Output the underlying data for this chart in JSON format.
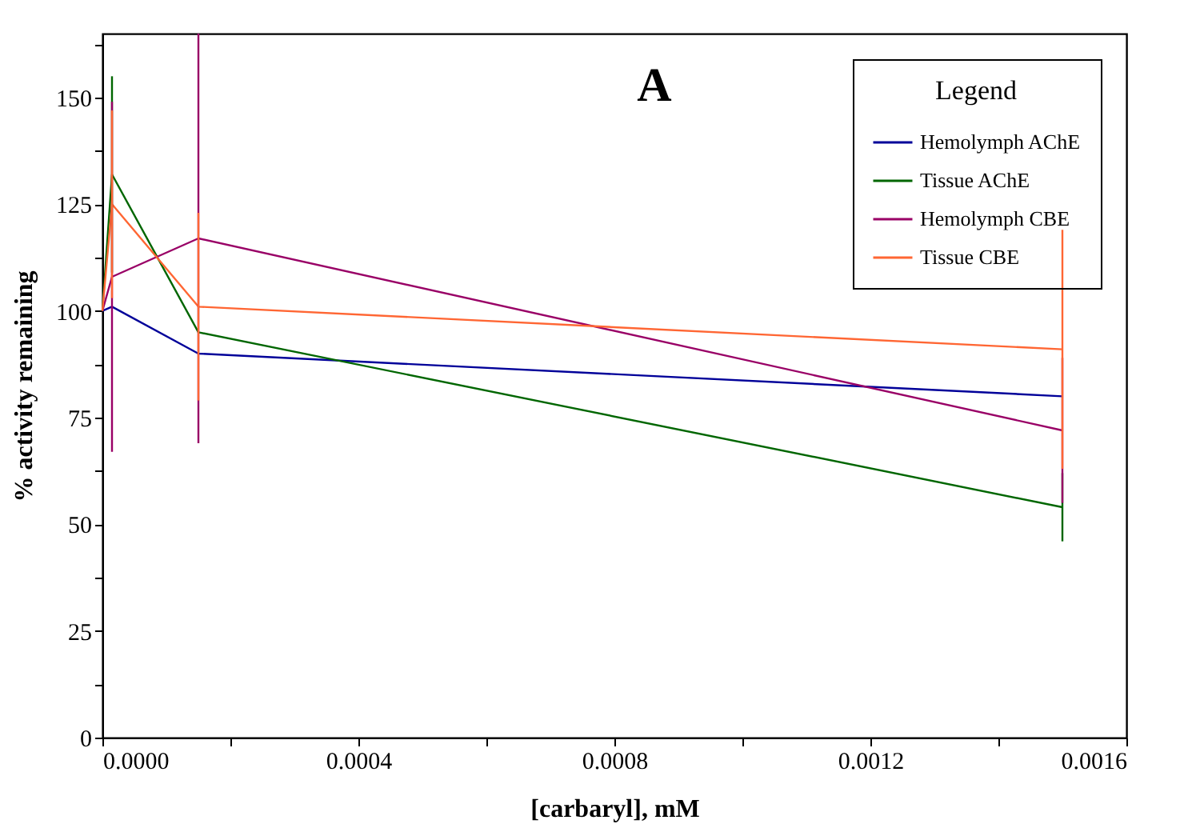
{
  "chart_data": {
    "type": "line",
    "xlabel": "[carbaryl], mM",
    "ylabel": "% activity remaining",
    "legend_title": "Legend",
    "annotations": [
      "A"
    ],
    "x": [
      0,
      1.5e-05,
      0.00015,
      0.0015
    ],
    "series": [
      {
        "name": "Hemolymph AChE",
        "color": "#000099",
        "values": [
          100,
          101,
          90,
          80
        ],
        "errors": [
          null,
          null,
          null,
          null
        ]
      },
      {
        "name": "Tissue AChE",
        "color": "#006600",
        "values": [
          100,
          132,
          95,
          54
        ],
        "errors": [
          null,
          23,
          null,
          8
        ]
      },
      {
        "name": "Hemolymph CBE",
        "color": "#990066",
        "values": [
          100,
          108,
          117,
          72
        ],
        "errors": [
          null,
          41,
          48,
          17
        ]
      },
      {
        "name": "Tissue CBE",
        "color": "#ff6633",
        "values": [
          100,
          125,
          101,
          91
        ],
        "errors": [
          null,
          22,
          22,
          28
        ]
      }
    ],
    "xlim": [
      0,
      0.0016
    ],
    "xticks": [
      {
        "value": 0,
        "label": "0.0000"
      },
      {
        "value": 0.0002,
        "label": null
      },
      {
        "value": 0.0004,
        "label": "0.0004"
      },
      {
        "value": 0.0006,
        "label": null
      },
      {
        "value": 0.0008,
        "label": "0.0008"
      },
      {
        "value": 0.001,
        "label": null
      },
      {
        "value": 0.0012,
        "label": "0.0012"
      },
      {
        "value": 0.0014,
        "label": null
      },
      {
        "value": 0.0016,
        "label": "0.0016"
      }
    ],
    "ylim": [
      0,
      165
    ],
    "yticks": [
      0,
      {
        "value": 12.5,
        "label": null
      },
      25,
      {
        "value": 37.5,
        "label": null
      },
      50,
      {
        "value": 62.5,
        "label": null
      },
      75,
      {
        "value": 87.5,
        "label": null
      },
      100,
      {
        "value": 112.5,
        "label": null
      },
      125,
      {
        "value": 137.5,
        "label": null
      },
      150,
      {
        "value": 162.5,
        "label": null
      }
    ],
    "grid": false,
    "legend": "top right",
    "marker": "none",
    "line_style": "solid"
  }
}
